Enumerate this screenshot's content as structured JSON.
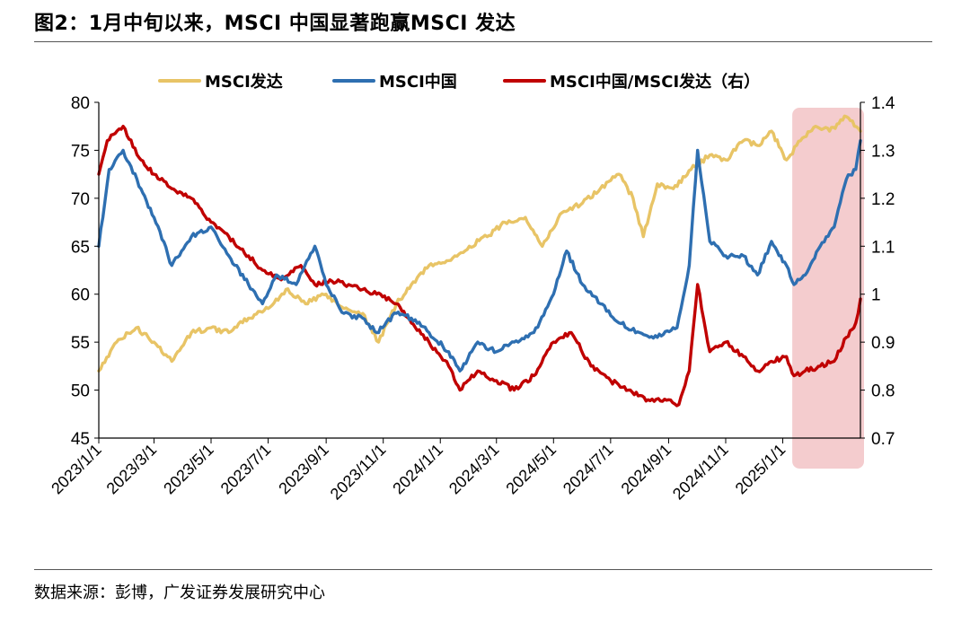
{
  "header": {
    "title": "图2：1月中旬以来，MSCI 中国显著跑赢MSCI 发达",
    "source": "数据来源：彭博，广发证券发展研究中心"
  },
  "chart_data": {
    "type": "line",
    "title": "图2：1月中旬以来，MSCI 中国显著跑赢MSCI 发达",
    "x_ticks": [
      "2023/1/1",
      "2023/3/1",
      "2023/5/1",
      "2023/7/1",
      "2023/9/1",
      "2023/11/1",
      "2024/1/1",
      "2024/3/1",
      "2024/5/1",
      "2024/7/1",
      "2024/9/1",
      "2024/11/1",
      "2025/1/1"
    ],
    "left_axis": {
      "ylim": [
        45,
        80
      ],
      "ticks": [
        "80",
        "75",
        "70",
        "65",
        "60",
        "55",
        "50",
        "45"
      ]
    },
    "right_axis": {
      "ylim": [
        0.7,
        1.4
      ],
      "ticks": [
        "1.4",
        "1.3",
        "1.2",
        "1.1",
        "1",
        "0.9",
        "0.8",
        "0.7"
      ]
    },
    "x_range": [
      "2023-01-01",
      "2025-03-25"
    ],
    "legend": {
      "placement": "top",
      "entries": [
        "MSCI发达",
        "MSCI中国",
        "MSCI中国/MSCI发达（右）"
      ]
    },
    "highlight": {
      "from": "2025-01-15",
      "to": "2025-03-25",
      "color": "#f2c3c6"
    },
    "series": [
      {
        "name": "MSCI发达",
        "axis": "left",
        "color": "#e8c466",
        "x": [
          "2023-01-01",
          "2023-01-20",
          "2023-02-10",
          "2023-03-01",
          "2023-03-20",
          "2023-04-10",
          "2023-05-01",
          "2023-05-20",
          "2023-06-10",
          "2023-07-01",
          "2023-07-20",
          "2023-08-10",
          "2023-09-01",
          "2023-09-20",
          "2023-10-10",
          "2023-10-27",
          "2023-11-15",
          "2023-12-01",
          "2023-12-20",
          "2024-01-10",
          "2024-02-01",
          "2024-02-20",
          "2024-03-10",
          "2024-04-01",
          "2024-04-19",
          "2024-05-10",
          "2024-06-01",
          "2024-06-20",
          "2024-07-10",
          "2024-07-25",
          "2024-08-05",
          "2024-08-20",
          "2024-09-06",
          "2024-09-25",
          "2024-10-15",
          "2024-11-01",
          "2024-11-20",
          "2024-12-05",
          "2024-12-20",
          "2025-01-05",
          "2025-01-20",
          "2025-02-05",
          "2025-02-20",
          "2025-03-10",
          "2025-03-25"
        ],
        "values": [
          52,
          55,
          56.5,
          55,
          53,
          56,
          56.5,
          56,
          57.5,
          58.5,
          60.5,
          59,
          60,
          58.5,
          58,
          55,
          59,
          61,
          63,
          63.5,
          65,
          66,
          67.5,
          68,
          65,
          68.5,
          69.5,
          71,
          72.5,
          70,
          66,
          71.5,
          71,
          73,
          74.5,
          74,
          76,
          75.5,
          77,
          74,
          76,
          77.5,
          77,
          78.5,
          77
        ]
      },
      {
        "name": "MSCI中国",
        "axis": "left",
        "color": "#2e6fb1",
        "x": [
          "2023-01-01",
          "2023-01-12",
          "2023-01-27",
          "2023-02-15",
          "2023-03-01",
          "2023-03-20",
          "2023-04-10",
          "2023-05-01",
          "2023-05-20",
          "2023-06-10",
          "2023-06-25",
          "2023-07-10",
          "2023-07-31",
          "2023-08-20",
          "2023-09-01",
          "2023-09-20",
          "2023-10-10",
          "2023-10-25",
          "2023-11-15",
          "2023-12-01",
          "2023-12-20",
          "2024-01-10",
          "2024-01-22",
          "2024-02-10",
          "2024-03-01",
          "2024-03-20",
          "2024-04-10",
          "2024-05-01",
          "2024-05-15",
          "2024-06-01",
          "2024-06-20",
          "2024-07-10",
          "2024-08-01",
          "2024-08-20",
          "2024-09-10",
          "2024-09-23",
          "2024-10-02",
          "2024-10-15",
          "2024-11-01",
          "2024-11-20",
          "2024-12-05",
          "2024-12-20",
          "2025-01-05",
          "2025-01-13",
          "2025-01-25",
          "2025-02-10",
          "2025-02-25",
          "2025-03-10",
          "2025-03-20",
          "2025-03-25"
        ],
        "values": [
          65,
          73,
          75,
          71,
          68,
          63,
          66,
          67,
          64,
          61,
          59,
          62,
          61,
          65,
          61,
          58,
          57.5,
          56,
          58,
          57.5,
          56,
          54,
          52,
          55,
          54,
          55,
          56,
          60,
          64.5,
          61,
          59,
          57,
          56,
          55.5,
          56.5,
          63,
          75,
          65.5,
          64,
          64,
          62,
          65.5,
          63,
          61,
          62,
          65,
          67,
          72,
          73,
          76
        ]
      },
      {
        "name": "MSCI中国/MSCI发达（右）",
        "axis": "right",
        "color": "#c00000",
        "x": [
          "2023-01-01",
          "2023-01-10",
          "2023-01-27",
          "2023-02-15",
          "2023-03-01",
          "2023-03-20",
          "2023-04-10",
          "2023-05-01",
          "2023-05-20",
          "2023-06-10",
          "2023-06-25",
          "2023-07-15",
          "2023-08-05",
          "2023-08-20",
          "2023-09-05",
          "2023-09-25",
          "2023-10-10",
          "2023-10-25",
          "2023-11-15",
          "2023-12-01",
          "2023-12-20",
          "2024-01-10",
          "2024-01-22",
          "2024-02-10",
          "2024-03-01",
          "2024-03-20",
          "2024-04-10",
          "2024-05-01",
          "2024-05-20",
          "2024-06-10",
          "2024-07-01",
          "2024-07-20",
          "2024-08-10",
          "2024-09-01",
          "2024-09-12",
          "2024-09-23",
          "2024-10-02",
          "2024-10-15",
          "2024-11-01",
          "2024-11-20",
          "2024-12-05",
          "2024-12-20",
          "2025-01-05",
          "2025-01-13",
          "2025-01-25",
          "2025-02-10",
          "2025-02-25",
          "2025-03-10",
          "2025-03-20",
          "2025-03-25"
        ],
        "values": [
          1.25,
          1.32,
          1.35,
          1.28,
          1.25,
          1.22,
          1.2,
          1.15,
          1.12,
          1.08,
          1.05,
          1.03,
          1.06,
          1.02,
          1.03,
          1.02,
          1.01,
          1,
          0.98,
          0.94,
          0.9,
          0.85,
          0.8,
          0.84,
          0.82,
          0.8,
          0.83,
          0.9,
          0.92,
          0.85,
          0.82,
          0.8,
          0.78,
          0.78,
          0.77,
          0.84,
          1.02,
          0.88,
          0.9,
          0.87,
          0.84,
          0.86,
          0.87,
          0.83,
          0.84,
          0.85,
          0.86,
          0.91,
          0.94,
          0.99
        ]
      }
    ]
  }
}
